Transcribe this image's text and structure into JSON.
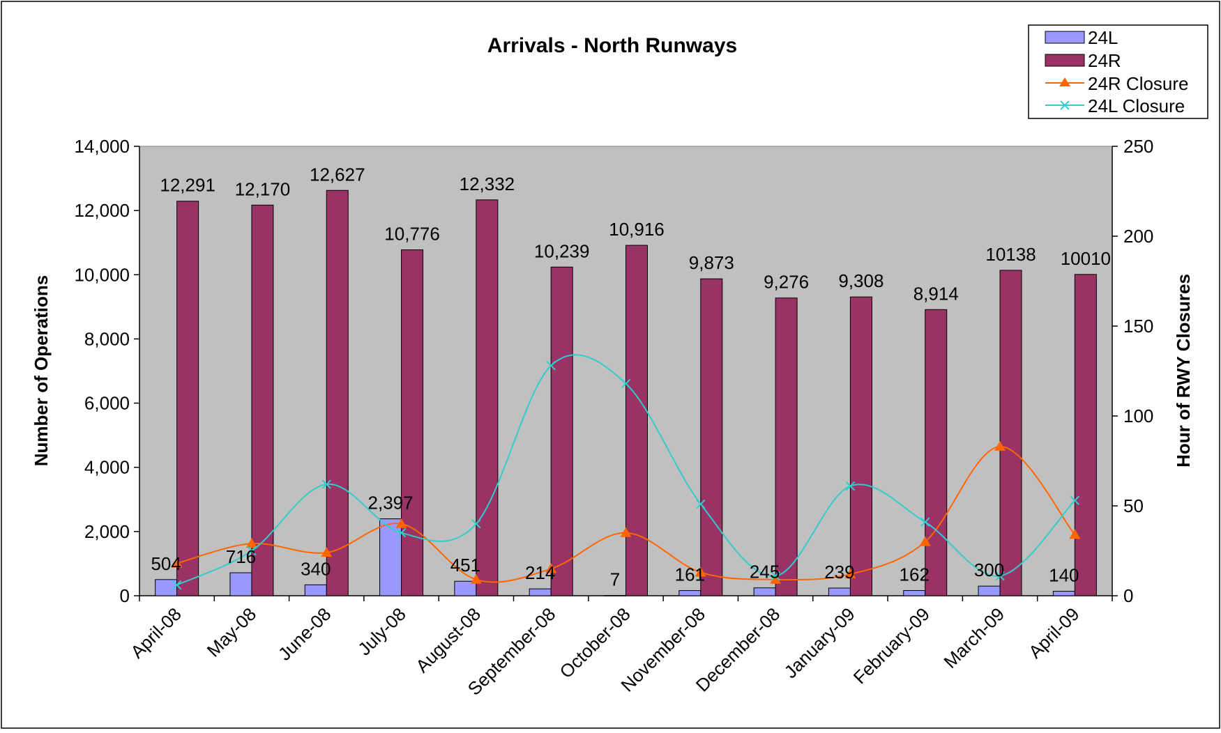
{
  "chart_data": {
    "type": "bar",
    "title": "Arrivals - North Runways",
    "ylabel": "Number of Operations",
    "y2label": "Hour of RWY Closures",
    "ylim": [
      0,
      14000
    ],
    "y2lim": [
      0,
      250
    ],
    "yticks": [
      "0",
      "2,000",
      "4,000",
      "6,000",
      "8,000",
      "10,000",
      "12,000",
      "14,000"
    ],
    "yticks_values": [
      0,
      2000,
      4000,
      6000,
      8000,
      10000,
      12000,
      14000
    ],
    "y2ticks": [
      "0",
      "50",
      "100",
      "150",
      "200",
      "250"
    ],
    "y2ticks_values": [
      0,
      50,
      100,
      150,
      200,
      250
    ],
    "grid": false,
    "plot_background": "#C0C0C0",
    "legend_position": "top-right",
    "categories": [
      "April-08",
      "May-08",
      "June-08",
      "July-08",
      "August-08",
      "September-08",
      "October-08",
      "November-08",
      "December-08",
      "January-09",
      "February-09",
      "March-09",
      "April-09"
    ],
    "series": [
      {
        "name": "24L",
        "type": "bar",
        "axis": "left",
        "color": "#9999FF",
        "values": [
          504,
          716,
          340,
          2397,
          451,
          214,
          7,
          161,
          245,
          239,
          162,
          300,
          140
        ],
        "labels": [
          "504",
          "716",
          "340",
          "2,397",
          "451",
          "214",
          "7",
          "161",
          "245",
          "239",
          "162",
          "300",
          "140"
        ]
      },
      {
        "name": "24R",
        "type": "bar",
        "axis": "left",
        "color": "#993366",
        "values": [
          12291,
          12170,
          12627,
          10776,
          12332,
          10239,
          10916,
          9873,
          9276,
          9308,
          8914,
          10138,
          10010
        ],
        "labels": [
          "12,291",
          "12,170",
          "12,627",
          "10,776",
          "12,332",
          "10,239",
          "10,916",
          "9,873",
          "9,276",
          "9,308",
          "8,914",
          "10138",
          "10010"
        ]
      },
      {
        "name": "24R Closure",
        "type": "line",
        "axis": "right",
        "color": "#FF6600",
        "marker": "triangle",
        "values": [
          18,
          29,
          24,
          40,
          9,
          15,
          35,
          13,
          9,
          12,
          30,
          83,
          34
        ]
      },
      {
        "name": "24L Closure",
        "type": "line",
        "axis": "right",
        "color": "#33CCCC",
        "marker": "x",
        "values": [
          6,
          25,
          62,
          35,
          40,
          128,
          118,
          51,
          11,
          61,
          41,
          11,
          53
        ]
      }
    ]
  }
}
